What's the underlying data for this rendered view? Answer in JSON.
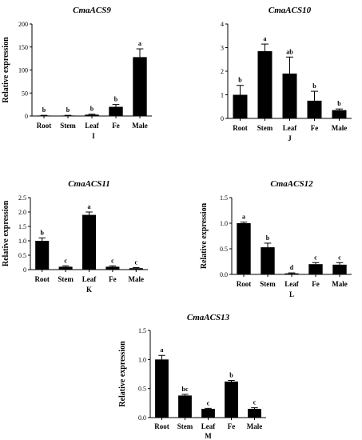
{
  "chart_data": [
    {
      "type": "bar",
      "title": "CmaACS9",
      "ylabel": "Relative expression",
      "panel_label": "I",
      "categories": [
        "Root",
        "Stem",
        "Leaf",
        "Fe",
        "Male"
      ],
      "values": [
        1,
        1,
        3,
        20,
        128
      ],
      "errors": [
        0.5,
        0.5,
        1,
        5,
        18
      ],
      "significance": [
        "b",
        "b",
        "b",
        "b",
        "a"
      ],
      "ylim": [
        0,
        200
      ],
      "yticks": [
        "0",
        "50",
        "100",
        "150",
        "200"
      ]
    },
    {
      "type": "bar",
      "title": "CmaACS10",
      "ylabel": "",
      "panel_label": "J",
      "categories": [
        "Root",
        "Stem",
        "Leaf",
        "Fe",
        "Male"
      ],
      "values": [
        1.0,
        2.85,
        1.9,
        0.75,
        0.35
      ],
      "errors": [
        0.4,
        0.3,
        0.7,
        0.4,
        0.05
      ],
      "significance": [
        "b",
        "a",
        "ab",
        "b",
        "b"
      ],
      "ylim": [
        0,
        4
      ],
      "yticks": [
        "0",
        "1",
        "2",
        "3",
        "4"
      ]
    },
    {
      "type": "bar",
      "title": "CmaACS11",
      "ylabel": "Relative expression",
      "panel_label": "K",
      "categories": [
        "Root",
        "Stem",
        "Leaf",
        "Fe",
        "Male"
      ],
      "values": [
        1.0,
        0.1,
        1.9,
        0.1,
        0.05
      ],
      "errors": [
        0.1,
        0.03,
        0.1,
        0.03,
        0.02
      ],
      "significance": [
        "b",
        "c",
        "a",
        "c",
        "c"
      ],
      "ylim": [
        0,
        2.5
      ],
      "yticks": [
        "0",
        "0.5",
        "1.0",
        "1.5",
        "2.0",
        "2.5"
      ]
    },
    {
      "type": "bar",
      "title": "CmaACS12",
      "ylabel": "Relative expression",
      "panel_label": "L",
      "categories": [
        "Root",
        "Stem",
        "Leaf",
        "Fe",
        "Male"
      ],
      "values": [
        1.0,
        0.53,
        0.02,
        0.2,
        0.19
      ],
      "errors": [
        0.02,
        0.08,
        0.01,
        0.03,
        0.04
      ],
      "significance": [
        "a",
        "b",
        "d",
        "c",
        "c"
      ],
      "ylim": [
        0,
        1.5
      ],
      "yticks": [
        "0.0",
        "0.5",
        "1.0",
        "1.5"
      ]
    },
    {
      "type": "bar",
      "title": "CmaACS13",
      "ylabel": "Relative expression",
      "panel_label": "M",
      "categories": [
        "Root",
        "Stem",
        "Leaf",
        "Fe",
        "Male"
      ],
      "values": [
        1.0,
        0.38,
        0.15,
        0.62,
        0.15
      ],
      "errors": [
        0.07,
        0.02,
        0.01,
        0.02,
        0.02
      ],
      "significance": [
        "a",
        "bc",
        "c",
        "b",
        "c"
      ],
      "ylim": [
        0,
        1.5
      ],
      "yticks": [
        "0.0",
        "0.5",
        "1.0",
        "1.5"
      ]
    }
  ]
}
